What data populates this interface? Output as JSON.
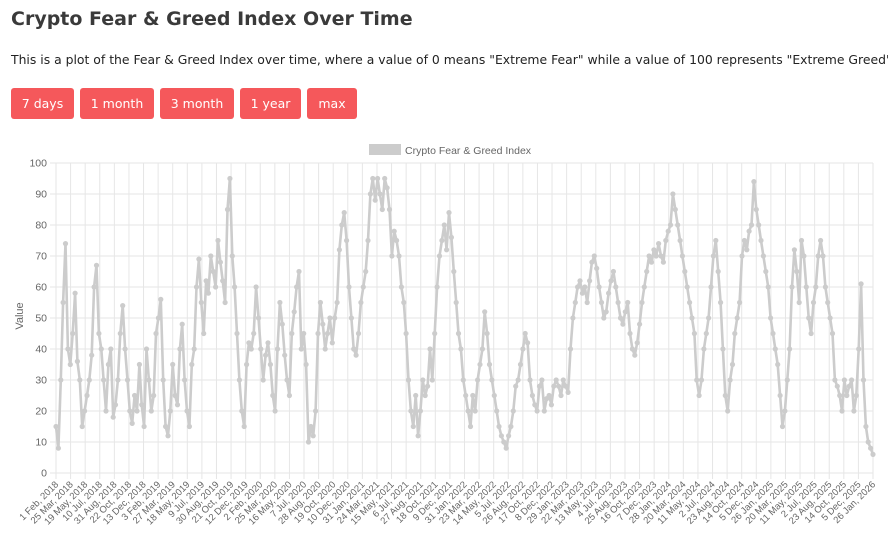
{
  "page": {
    "title": "Crypto Fear & Greed Index Over Time",
    "description": "This is a plot of the Fear & Greed Index over time, where a value of 0 means \"Extreme Fear\" while a value of 100 represents \"Extreme Greed\"."
  },
  "range_buttons": [
    {
      "label": "7 days"
    },
    {
      "label": "1 month"
    },
    {
      "label": "3 month"
    },
    {
      "label": "1 year"
    },
    {
      "label": "max"
    }
  ],
  "colors": {
    "button": "#f5585b",
    "series": "#cccccc",
    "grid": "#e6e6e6",
    "axis_text": "#666666"
  },
  "chart_data": {
    "type": "line",
    "legend": {
      "label": "Crypto Fear & Greed Index",
      "position": "top-center"
    },
    "ylabel": "Value",
    "xlabel": "",
    "ylim": [
      0,
      100
    ],
    "yticks": [
      0,
      10,
      20,
      30,
      40,
      50,
      60,
      70,
      80,
      90,
      100
    ],
    "grid": true,
    "xticks": [
      "1 Feb, 2018",
      "25 Mar, 2018",
      "19 May, 2018",
      "10 Jul, 2018",
      "31 Aug, 2018",
      "22 Oct, 2018",
      "13 Dec, 2018",
      "3 Feb, 2019",
      "27 Mar, 2019",
      "18 May, 2019",
      "9 Jul, 2019",
      "30 Aug, 2019",
      "21 Oct, 2019",
      "12 Dec, 2019",
      "2 Feb, 2020",
      "25 Mar, 2020",
      "16 May, 2020",
      "7 Jul, 2020",
      "28 Aug, 2020",
      "19 Oct, 2020",
      "10 Dec, 2020",
      "31 Jan, 2021",
      "24 Mar, 2021",
      "15 May, 2021",
      "6 Jul, 2021",
      "27 Aug, 2021",
      "18 Oct, 2021",
      "9 Dec, 2021",
      "31 Jan, 2022",
      "23 Mar, 2022",
      "14 May, 2022",
      "5 Jul, 2022",
      "26 Aug, 2022",
      "17 Oct, 2022",
      "8 Dec, 2022",
      "29 Jan, 2023",
      "22 Mar, 2023",
      "13 May, 2023",
      "4 Jul, 2023",
      "25 Aug, 2023",
      "16 Oct, 2023",
      "7 Dec, 2023",
      "28 Jan, 2024",
      "20 Mar, 2024",
      "11 May, 2024",
      "2 Jul, 2024",
      "23 Aug, 2024",
      "14 Oct, 2024",
      "5 Dec, 2024",
      "26 Jan, 2025",
      "20 Mar, 2025",
      "11 May, 2025",
      "2 Jul, 2025",
      "23 Aug, 2025",
      "14 Oct, 2025",
      "5 Dec, 2025",
      "26 Jan, 2026"
    ],
    "series": [
      {
        "name": "Crypto Fear & Greed Index",
        "values": [
          15,
          8,
          30,
          55,
          74,
          40,
          35,
          45,
          58,
          36,
          30,
          15,
          20,
          25,
          30,
          38,
          60,
          67,
          45,
          40,
          30,
          20,
          35,
          40,
          18,
          22,
          30,
          45,
          54,
          40,
          30,
          20,
          16,
          25,
          20,
          35,
          22,
          15,
          40,
          30,
          20,
          25,
          45,
          50,
          56,
          30,
          15,
          12,
          20,
          35,
          25,
          22,
          40,
          48,
          30,
          20,
          15,
          35,
          40,
          60,
          69,
          55,
          45,
          62,
          58,
          70,
          65,
          60,
          75,
          68,
          62,
          55,
          85,
          95,
          70,
          60,
          45,
          30,
          20,
          15,
          35,
          42,
          40,
          45,
          60,
          50,
          40,
          30,
          38,
          42,
          35,
          25,
          20,
          40,
          55,
          48,
          38,
          30,
          25,
          45,
          52,
          60,
          65,
          40,
          45,
          35,
          10,
          15,
          12,
          20,
          45,
          55,
          48,
          40,
          45,
          50,
          42,
          50,
          55,
          72,
          80,
          84,
          75,
          60,
          50,
          40,
          38,
          45,
          55,
          60,
          65,
          75,
          90,
          95,
          88,
          95,
          90,
          85,
          95,
          92,
          85,
          70,
          78,
          75,
          70,
          60,
          55,
          45,
          30,
          20,
          15,
          25,
          12,
          20,
          30,
          25,
          28,
          40,
          30,
          45,
          60,
          70,
          75,
          80,
          72,
          84,
          76,
          65,
          55,
          45,
          40,
          30,
          25,
          20,
          15,
          25,
          20,
          30,
          35,
          40,
          52,
          45,
          35,
          30,
          25,
          20,
          15,
          12,
          10,
          8,
          12,
          15,
          20,
          28,
          30,
          35,
          40,
          45,
          42,
          30,
          25,
          22,
          20,
          28,
          30,
          20,
          24,
          25,
          22,
          28,
          30,
          28,
          25,
          30,
          28,
          26,
          40,
          50,
          55,
          60,
          62,
          58,
          60,
          55,
          62,
          68,
          70,
          66,
          60,
          55,
          50,
          52,
          58,
          62,
          65,
          60,
          55,
          50,
          48,
          52,
          55,
          45,
          40,
          38,
          42,
          48,
          55,
          60,
          65,
          70,
          68,
          72,
          70,
          74,
          70,
          68,
          75,
          78,
          80,
          90,
          85,
          80,
          75,
          70,
          65,
          60,
          55,
          50,
          45,
          30,
          25,
          30,
          40,
          45,
          50,
          60,
          70,
          75,
          65,
          55,
          40,
          25,
          20,
          30,
          35,
          45,
          50,
          55,
          70,
          75,
          72,
          78,
          80,
          94,
          85,
          80,
          75,
          70,
          65,
          60,
          50,
          45,
          40,
          35,
          25,
          15,
          20,
          30,
          40,
          60,
          72,
          65,
          55,
          75,
          70,
          60,
          50,
          45,
          55,
          60,
          70,
          75,
          70,
          60,
          55,
          50,
          45,
          30,
          28,
          25,
          20,
          30,
          25,
          28,
          30,
          20,
          25,
          40,
          61,
          30,
          15,
          10,
          8,
          6
        ]
      }
    ]
  }
}
